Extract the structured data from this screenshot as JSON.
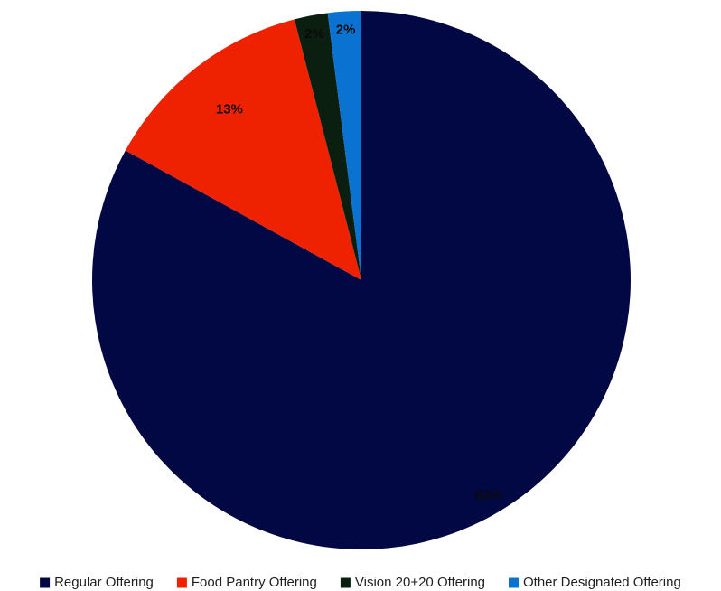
{
  "chart_data": {
    "type": "pie",
    "title": "",
    "start_angle_deg": 0,
    "direction": "clockwise",
    "legend_position": "bottom",
    "slices": [
      {
        "label": "Regular Offering",
        "value": 83,
        "display": "83%",
        "color": "#020843",
        "label_color": "#0a0a0a"
      },
      {
        "label": "Food Pantry Offering",
        "value": 13,
        "display": "13%",
        "color": "#ee2200",
        "label_color": "#0a0a0a"
      },
      {
        "label": "Vision 20+20 Offering",
        "value": 2,
        "display": "2%",
        "color": "#0b1f10",
        "label_color": "#0a0a0a"
      },
      {
        "label": "Other Designated Offering",
        "value": 2,
        "display": "2%",
        "color": "#0a73d1",
        "label_color": "#0a0a0a"
      }
    ]
  }
}
